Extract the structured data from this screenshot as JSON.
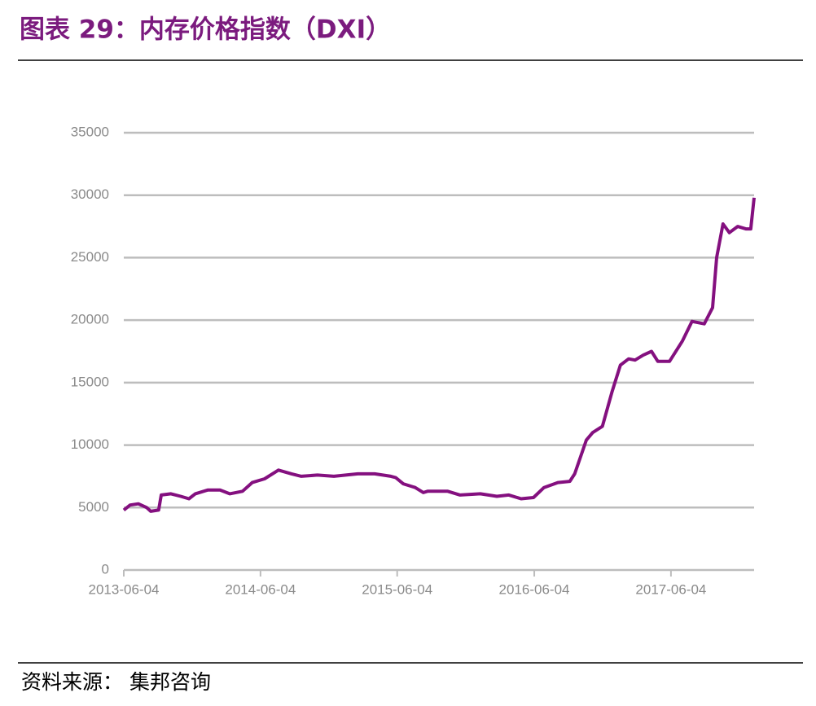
{
  "chart_data": {
    "type": "line",
    "title": "图表 29：内存价格指数（DXI）",
    "source": "资料来源： 集邦咨询",
    "x": [
      "2013-06-04",
      "2013-06-21",
      "2013-07-13",
      "2013-08-04",
      "2013-08-15",
      "2013-09-05",
      "2013-09-12",
      "2013-10-08",
      "2013-11-03",
      "2013-11-25",
      "2013-12-12",
      "2014-01-14",
      "2014-02-16",
      "2014-03-14",
      "2014-04-17",
      "2014-05-13",
      "2014-06-15",
      "2014-07-22",
      "2014-08-26",
      "2014-09-21",
      "2014-11-03",
      "2014-12-17",
      "2015-02-19",
      "2015-04-05",
      "2015-05-18",
      "2015-05-31",
      "2015-06-20",
      "2015-07-22",
      "2015-08-13",
      "2015-08-24",
      "2015-10-17",
      "2015-11-19",
      "2016-01-12",
      "2016-02-25",
      "2016-03-28",
      "2016-04-30",
      "2016-06-02",
      "2016-06-30",
      "2016-08-06",
      "2016-09-07",
      "2016-09-20",
      "2016-10-21",
      "2016-11-07",
      "2016-12-03",
      "2016-12-29",
      "2017-01-20",
      "2017-02-11",
      "2017-02-28",
      "2017-03-22",
      "2017-04-13",
      "2017-04-30",
      "2017-05-31",
      "2017-07-04",
      "2017-07-30",
      "2017-09-01",
      "2017-09-23",
      "2017-10-04",
      "2017-10-21",
      "2017-11-07",
      "2017-11-29",
      "2017-12-21",
      "2018-01-03",
      "2018-01-12"
    ],
    "series": [
      {
        "name": "DXI",
        "color": "#84107f",
        "values": [
          4800,
          5200,
          5300,
          5000,
          4700,
          4800,
          6000,
          6100,
          5900,
          5700,
          6100,
          6400,
          6400,
          6100,
          6300,
          7000,
          7300,
          8000,
          7700,
          7500,
          7600,
          7500,
          7700,
          7700,
          7500,
          7400,
          6900,
          6600,
          6200,
          6300,
          6300,
          6000,
          6100,
          5900,
          6000,
          5700,
          5800,
          6600,
          7000,
          7100,
          7700,
          10400,
          11000,
          11500,
          14300,
          16400,
          16900,
          16800,
          17200,
          17500,
          16700,
          16700,
          18300,
          19900,
          19700,
          21000,
          25000,
          27700,
          27000,
          27500,
          27300,
          27300,
          29800
        ]
      }
    ],
    "xlim": [
      "2013-06-04",
      "2018-01-12"
    ],
    "xticks": [
      "2013-06-04",
      "2014-06-04",
      "2015-06-04",
      "2016-06-04",
      "2017-06-04"
    ],
    "ylim": [
      0,
      35000
    ],
    "yticks": [
      0,
      5000,
      10000,
      15000,
      20000,
      25000,
      30000,
      35000
    ],
    "grid": true
  }
}
